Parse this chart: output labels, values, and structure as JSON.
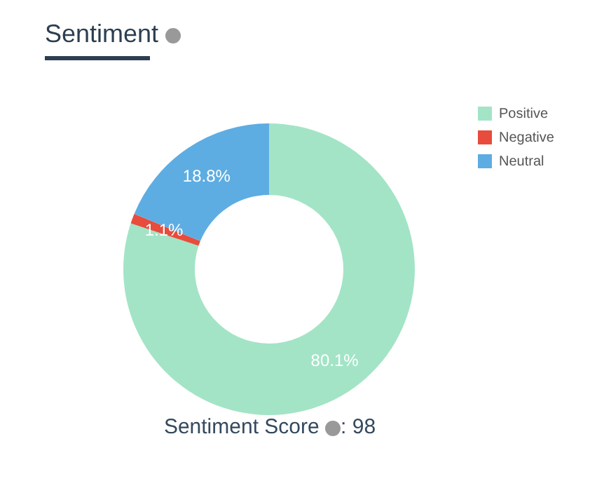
{
  "chart_data": {
    "type": "donut",
    "title": "Sentiment",
    "categories": [
      "Positive",
      "Negative",
      "Neutral"
    ],
    "values": [
      80.1,
      1.1,
      18.8
    ],
    "colors": [
      "#a3e4c6",
      "#e74c3c",
      "#5dade2"
    ],
    "value_labels": [
      "80.1%",
      "1.1%",
      "18.8%"
    ],
    "legend": "top right",
    "annotations": [
      "Sentiment Score",
      ": 98"
    ]
  }
}
